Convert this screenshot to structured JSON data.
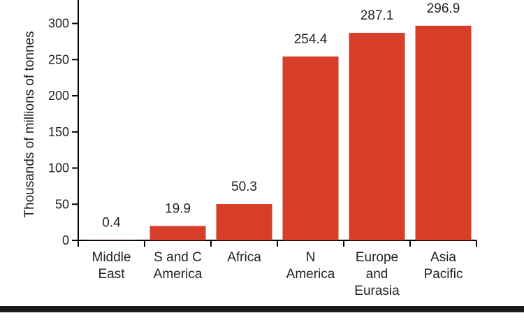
{
  "chart_data": {
    "type": "bar",
    "title": "",
    "xlabel": "",
    "ylabel": "Thousands of millions of tonnes",
    "categories": [
      [
        "Middle",
        "East"
      ],
      [
        "S and C",
        "America"
      ],
      [
        "Africa"
      ],
      [
        "N",
        "America"
      ],
      [
        "Europe",
        "and",
        "Eurasia"
      ],
      [
        "Asia",
        "Pacific"
      ]
    ],
    "values": [
      0.4,
      19.9,
      50.3,
      254.4,
      287.1,
      296.9
    ],
    "value_labels": [
      "0.4",
      "19.9",
      "50.3",
      "254.4",
      "287.1",
      "296.9"
    ],
    "ylim": [
      0,
      330
    ],
    "yticks": [
      0,
      50,
      100,
      150,
      200,
      250,
      300
    ],
    "grid": false,
    "legend": "none",
    "colors": {
      "bar": "#d63e2a",
      "axis": "#000000",
      "text": "#222222",
      "background": "#ffffff",
      "rule": "#1a1a1a"
    }
  }
}
